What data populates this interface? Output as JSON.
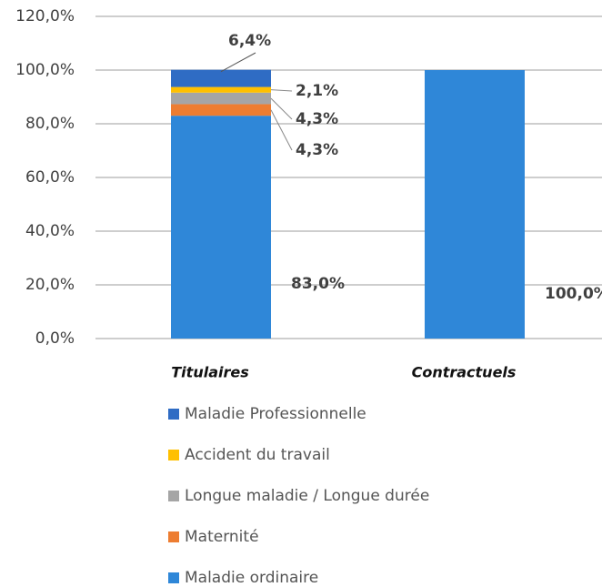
{
  "chart_data": {
    "type": "stacked_bar",
    "categories": [
      "Titulaires",
      "Contractuels"
    ],
    "series": [
      {
        "name": "Maladie ordinaire",
        "color": "#2f87d8",
        "values": [
          83.0,
          100.0
        ],
        "value_labels": [
          "83,0%",
          "100,0%"
        ]
      },
      {
        "name": "Maternité",
        "color": "#ed7d31",
        "values": [
          4.3,
          0
        ],
        "value_labels": [
          "4,3%",
          null
        ]
      },
      {
        "name": "Longue maladie / Longue durée",
        "color": "#a5a5a5",
        "values": [
          4.3,
          0
        ],
        "value_labels": [
          "4,3%",
          null
        ]
      },
      {
        "name": "Accident du travail",
        "color": "#ffc000",
        "values": [
          2.1,
          0
        ],
        "value_labels": [
          "2,1%",
          null
        ]
      },
      {
        "name": "Maladie Professionnelle",
        "color": "#2f6cc4",
        "values": [
          6.4,
          0
        ],
        "value_labels": [
          "6,4%",
          null
        ]
      }
    ],
    "ylim": [
      0,
      120
    ],
    "yticks": [
      {
        "value": 0,
        "label": "0,0%"
      },
      {
        "value": 20,
        "label": "20,0%"
      },
      {
        "value": 40,
        "label": "40,0%"
      },
      {
        "value": 60,
        "label": "60,0%"
      },
      {
        "value": 80,
        "label": "80,0%"
      },
      {
        "value": 100,
        "label": "100,0%"
      },
      {
        "value": 120,
        "label": "120,0%"
      }
    ],
    "grid": true
  }
}
